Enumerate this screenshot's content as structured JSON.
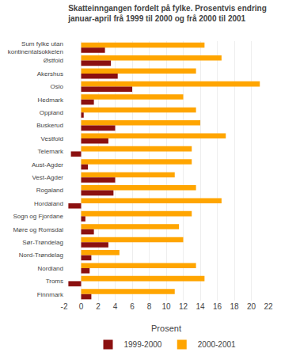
{
  "chart_data": {
    "type": "bar",
    "orientation": "horizontal",
    "title": "Skatteinngangen fordelt på fylke. Prosentvis endring",
    "subtitle": "januar-april frå 1999 til 2000 og frå 2000 til 2001",
    "categories": [
      "Sum fylke utan\nkontinentalsokkelen",
      "Østfold",
      "Akershus",
      "Oslo",
      "Hedmark",
      "Oppland",
      "Buskerud",
      "Vestfold",
      "Telemark",
      "Aust-Agder",
      "Vest-Agder",
      "Rogaland",
      "Hordaland",
      "Sogn og Fjordane",
      "Møre og Romsdal",
      "Sør-Trøndelag",
      "Nord-Trøndelag",
      "Nordland",
      "Troms",
      "Finnmark"
    ],
    "series": [
      {
        "name": "2000-2001",
        "color": "#FFA500",
        "values": [
          14.5,
          16.5,
          13.5,
          21.0,
          12.0,
          13.5,
          14.0,
          17.0,
          13.0,
          13.0,
          11.0,
          13.5,
          16.5,
          13.0,
          11.5,
          12.0,
          4.5,
          13.5,
          14.5,
          11.0
        ]
      },
      {
        "name": "1999-2000",
        "color": "#8B1010",
        "values": [
          2.8,
          3.5,
          4.3,
          6.0,
          1.5,
          0.3,
          4.0,
          3.2,
          -1.2,
          0.8,
          4.0,
          3.8,
          -1.5,
          0.5,
          1.5,
          3.2,
          1.2,
          1.0,
          -1.5,
          1.2
        ]
      }
    ],
    "xlabel": "Prosent",
    "xlim": [
      -2,
      22
    ],
    "xticks": [
      -2,
      0,
      2,
      4,
      6,
      8,
      10,
      12,
      14,
      16,
      18,
      20,
      22
    ],
    "grid": true,
    "legend": "bottom"
  }
}
